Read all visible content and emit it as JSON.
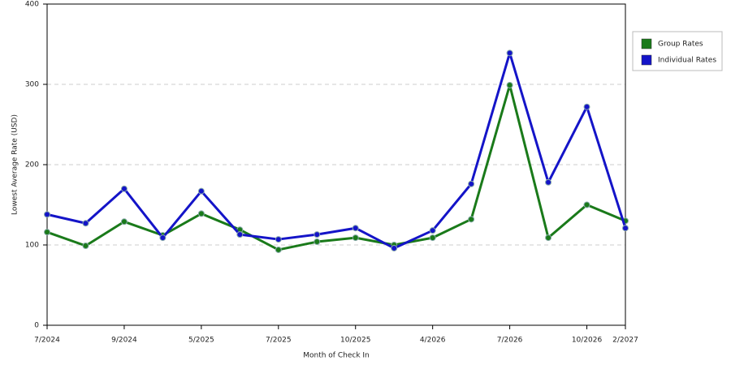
{
  "chart_data": {
    "type": "line",
    "x_label": "Month of Check In",
    "y_label": "Lowest Average Rate (USD)",
    "categories": [
      "7/2024",
      null,
      "9/2024",
      null,
      "5/2025",
      null,
      "7/2025",
      null,
      "10/2025",
      null,
      "4/2026",
      null,
      "7/2026",
      null,
      "10/2026",
      "2/2027"
    ],
    "series": [
      {
        "name": "Group Rates",
        "color": "#1a7a1a",
        "values": [
          116,
          99,
          129,
          112,
          139,
          119,
          94,
          104,
          109,
          100,
          109,
          132,
          299,
          109,
          150,
          130
        ]
      },
      {
        "name": "Individual Rates",
        "color": "#1414c8",
        "values": [
          138,
          127,
          170,
          109,
          167,
          113,
          107,
          113,
          121,
          96,
          118,
          176,
          339,
          178,
          272,
          121
        ]
      }
    ],
    "ylim": [
      0,
      400
    ],
    "yticks": [
      0,
      100,
      200,
      300,
      400
    ],
    "grid": true,
    "legend": "right"
  }
}
